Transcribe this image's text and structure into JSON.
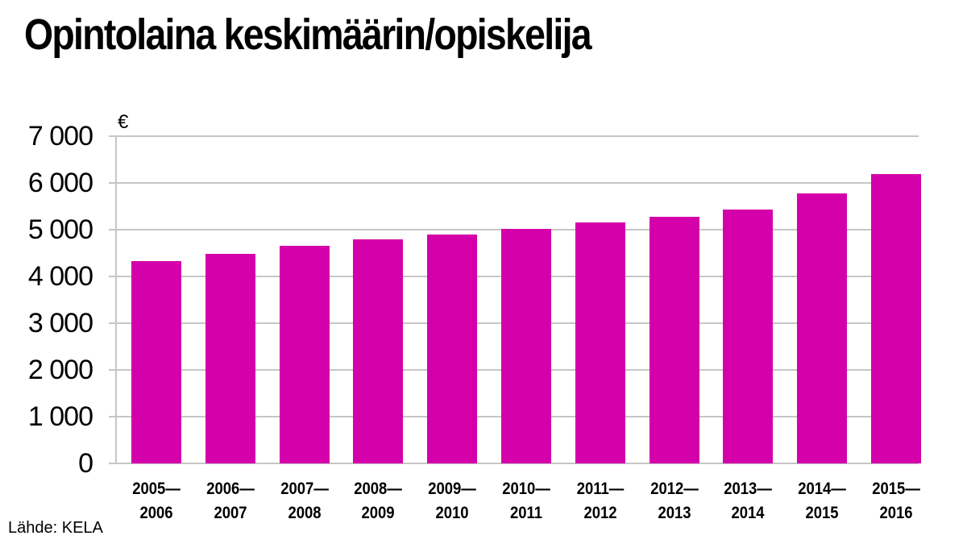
{
  "chart_data": {
    "type": "bar",
    "title": "Opintolaina keskimäärin/opiskelija",
    "xlabel": "",
    "ylabel": "€",
    "ylim": [
      0,
      7000
    ],
    "yticks": [
      "0",
      "1 000",
      "2 000",
      "3 000",
      "4 000",
      "5 000",
      "6 000",
      "7 000"
    ],
    "grid": true,
    "categories": [
      "2005—2006",
      "2006—2007",
      "2007—2008",
      "2008—2009",
      "2009—2010",
      "2010—2011",
      "2011—2012",
      "2012—2013",
      "2013—2014",
      "2014—2015",
      "2015—2016"
    ],
    "category_lines": [
      [
        "2005—",
        "2006"
      ],
      [
        "2006—",
        "2007"
      ],
      [
        "2007—",
        "2008"
      ],
      [
        "2008—",
        "2009"
      ],
      [
        "2009—",
        "2010"
      ],
      [
        "2010—",
        "2011"
      ],
      [
        "2011—",
        "2012"
      ],
      [
        "2012—",
        "2013"
      ],
      [
        "2013—",
        "2014"
      ],
      [
        "2014—",
        "2015"
      ],
      [
        "2015—",
        "2016"
      ]
    ],
    "values": [
      4330,
      4480,
      4650,
      4800,
      4890,
      5020,
      5150,
      5280,
      5430,
      5770,
      6190
    ],
    "bar_color": "#d400aa",
    "source": "Lähde: KELA"
  }
}
